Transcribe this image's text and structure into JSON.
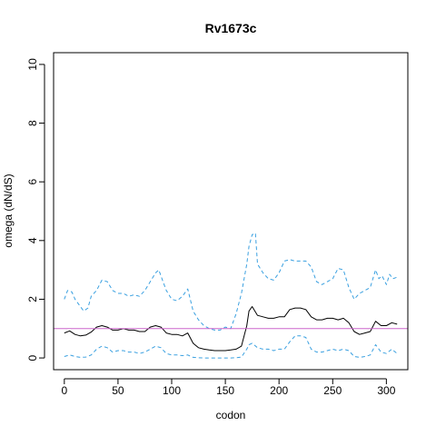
{
  "chart_data": {
    "type": "line",
    "title": "Rv1673c",
    "xlabel": "codon",
    "ylabel": "omega (dN/dS)",
    "xlim": [
      -10,
      320
    ],
    "ylim": [
      -0.4,
      10.4
    ],
    "x_ticks": [
      0,
      50,
      100,
      150,
      200,
      250,
      300
    ],
    "y_ticks": [
      0,
      2,
      4,
      6,
      8,
      10
    ],
    "grid": false,
    "reference_line": {
      "y": 1,
      "color": "#cc66cc"
    },
    "colors": {
      "omega": "#000000",
      "ci_upper": "#3aa0e0",
      "ci_lower": "#3aa0e0"
    },
    "series": [
      {
        "style": "solid",
        "x": [
          0,
          5,
          10,
          15,
          20,
          25,
          30,
          35,
          40,
          45,
          50,
          55,
          60,
          65,
          70,
          75,
          80,
          85,
          90,
          95,
          100,
          105,
          110,
          115,
          120,
          125,
          130,
          135,
          140,
          145,
          150,
          155,
          160,
          165,
          170,
          172,
          175,
          180,
          185,
          190,
          195,
          200,
          205,
          210,
          215,
          220,
          225,
          230,
          235,
          240,
          245,
          250,
          255,
          260,
          265,
          270,
          275,
          280,
          285,
          290,
          295,
          300,
          305,
          310
        ],
        "values": [
          0.85,
          0.92,
          0.8,
          0.75,
          0.78,
          0.88,
          1.05,
          1.1,
          1.05,
          0.95,
          0.95,
          1.0,
          0.95,
          0.95,
          0.9,
          0.9,
          1.05,
          1.1,
          1.05,
          0.85,
          0.8,
          0.8,
          0.75,
          0.85,
          0.5,
          0.35,
          0.3,
          0.27,
          0.25,
          0.25,
          0.25,
          0.27,
          0.3,
          0.4,
          1.1,
          1.6,
          1.75,
          1.45,
          1.4,
          1.35,
          1.35,
          1.4,
          1.4,
          1.65,
          1.7,
          1.7,
          1.65,
          1.4,
          1.3,
          1.3,
          1.35,
          1.35,
          1.3,
          1.35,
          1.2,
          0.9,
          0.8,
          0.85,
          0.9,
          1.25,
          1.1,
          1.1,
          1.2,
          1.15
        ]
      },
      {
        "style": "dashed",
        "x": [
          0,
          3,
          7,
          10,
          15,
          18,
          22,
          25,
          30,
          35,
          40,
          45,
          50,
          55,
          60,
          65,
          70,
          75,
          80,
          85,
          88,
          92,
          95,
          100,
          105,
          110,
          115,
          120,
          125,
          130,
          135,
          140,
          145,
          150,
          155,
          160,
          165,
          170,
          172,
          175,
          178,
          180,
          185,
          190,
          195,
          200,
          205,
          210,
          215,
          220,
          225,
          230,
          235,
          240,
          245,
          250,
          255,
          260,
          265,
          270,
          275,
          280,
          285,
          290,
          293,
          296,
          300,
          303,
          306,
          310
        ],
        "values": [
          2.0,
          2.3,
          2.25,
          2.0,
          1.75,
          1.6,
          1.7,
          2.1,
          2.3,
          2.65,
          2.6,
          2.3,
          2.2,
          2.2,
          2.1,
          2.15,
          2.1,
          2.3,
          2.6,
          2.9,
          3.0,
          2.6,
          2.3,
          2.0,
          1.95,
          2.1,
          2.35,
          1.6,
          1.3,
          1.1,
          1.0,
          0.95,
          0.95,
          1.05,
          1.0,
          1.5,
          2.2,
          3.2,
          3.8,
          4.2,
          4.25,
          3.2,
          2.9,
          2.7,
          2.65,
          2.9,
          3.3,
          3.35,
          3.3,
          3.3,
          3.3,
          3.1,
          2.6,
          2.5,
          2.6,
          2.7,
          3.05,
          3.0,
          2.4,
          2.0,
          2.2,
          2.3,
          2.4,
          3.0,
          2.7,
          2.8,
          2.5,
          2.85,
          2.7,
          2.75
        ]
      },
      {
        "style": "dashed",
        "x": [
          0,
          5,
          10,
          15,
          20,
          25,
          30,
          35,
          40,
          45,
          50,
          55,
          60,
          65,
          70,
          75,
          80,
          85,
          90,
          95,
          100,
          105,
          110,
          115,
          120,
          125,
          130,
          135,
          140,
          145,
          150,
          155,
          160,
          165,
          170,
          172,
          175,
          180,
          185,
          190,
          195,
          200,
          205,
          210,
          215,
          220,
          225,
          230,
          235,
          240,
          245,
          250,
          255,
          260,
          265,
          270,
          275,
          280,
          285,
          290,
          295,
          300,
          305,
          310
        ],
        "values": [
          0.05,
          0.1,
          0.05,
          0.02,
          0.03,
          0.1,
          0.3,
          0.4,
          0.35,
          0.2,
          0.25,
          0.25,
          0.2,
          0.2,
          0.15,
          0.2,
          0.3,
          0.4,
          0.35,
          0.15,
          0.1,
          0.1,
          0.08,
          0.1,
          0.02,
          0.01,
          0.0,
          0.0,
          0.0,
          0.0,
          0.0,
          0.0,
          0.01,
          0.03,
          0.3,
          0.45,
          0.5,
          0.35,
          0.3,
          0.3,
          0.25,
          0.3,
          0.3,
          0.55,
          0.75,
          0.75,
          0.7,
          0.3,
          0.2,
          0.2,
          0.25,
          0.3,
          0.25,
          0.3,
          0.25,
          0.05,
          0.02,
          0.05,
          0.1,
          0.45,
          0.2,
          0.15,
          0.3,
          0.15
        ]
      }
    ]
  }
}
